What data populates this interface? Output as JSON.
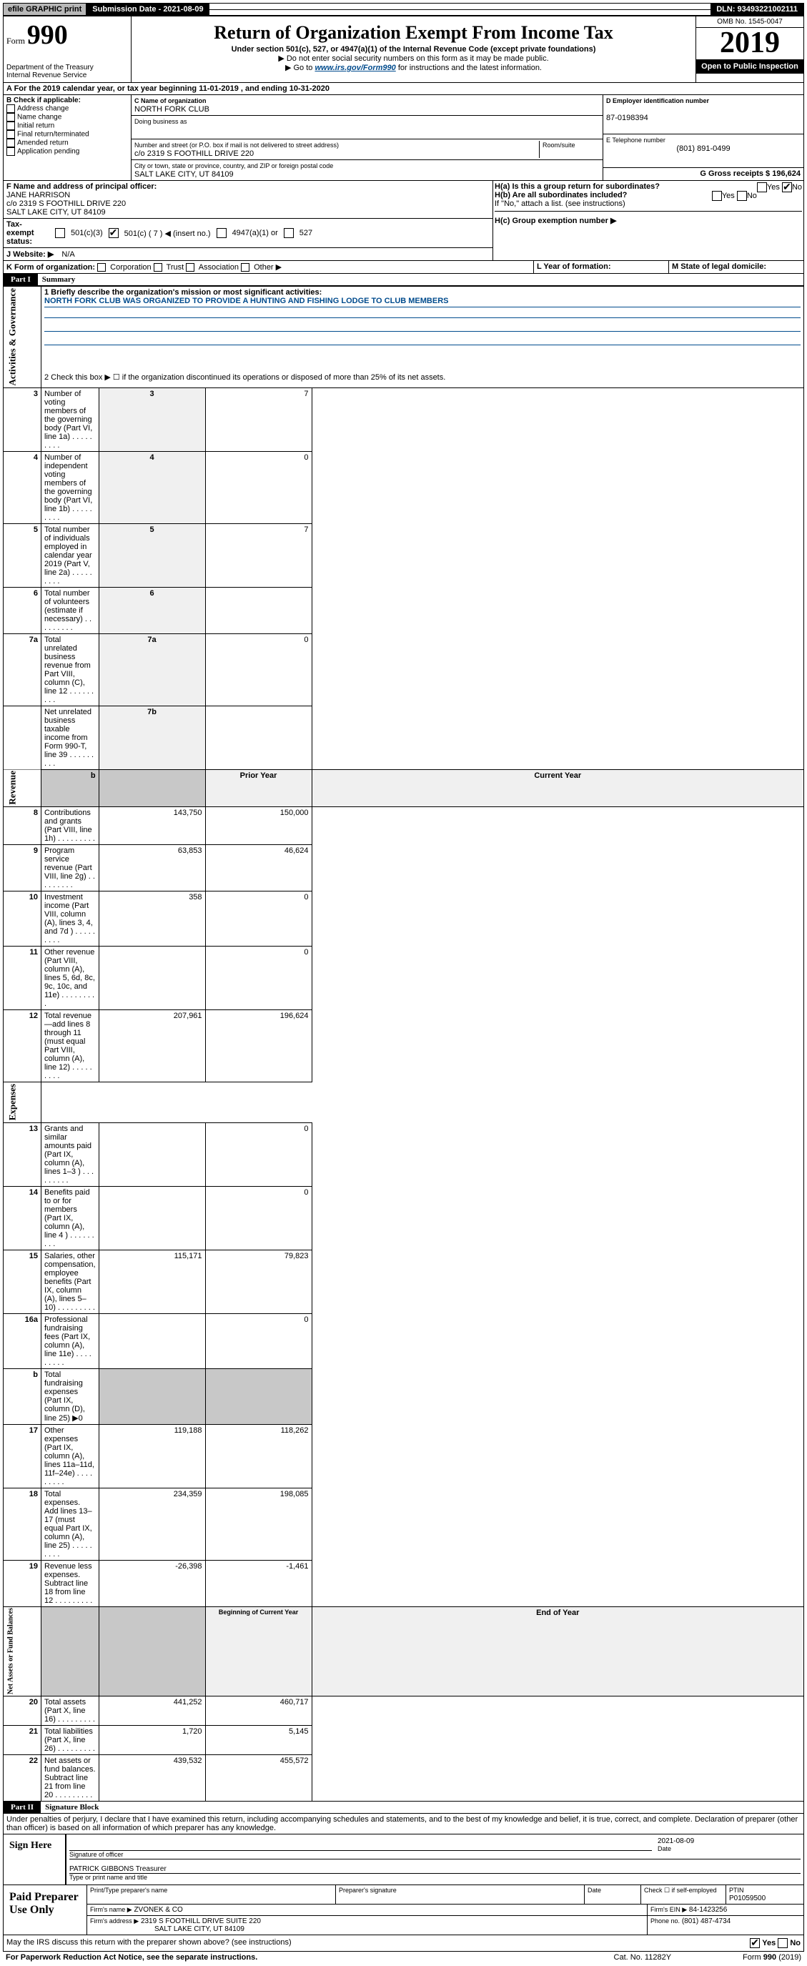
{
  "topbar": {
    "efile": "efile GRAPHIC print",
    "submission": "Submission Date - 2021-08-09",
    "dln": "DLN: 93493221002111"
  },
  "header": {
    "form_prefix": "Form",
    "form_num": "990",
    "dept": "Department of the Treasury\nInternal Revenue Service",
    "title": "Return of Organization Exempt From Income Tax",
    "sub1": "Under section 501(c), 527, or 4947(a)(1) of the Internal Revenue Code (except private foundations)",
    "sub2": "▶ Do not enter social security numbers on this form as it may be made public.",
    "sub3_pre": "▶ Go to ",
    "sub3_link": "www.irs.gov/Form990",
    "sub3_post": " for instructions and the latest information.",
    "omb": "OMB No. 1545-0047",
    "year": "2019",
    "open": "Open to Public Inspection"
  },
  "row_a": {
    "a_label": "A For the 2019 calendar year, or tax year beginning 11-01-2019   , and ending 10-31-2020",
    "b_label": "B Check if applicable:",
    "b_opts": [
      "Address change",
      "Name change",
      "Initial return",
      "Final return/terminated",
      "Amended return",
      "Application pending"
    ],
    "c_label": "C Name of organization",
    "c_val": "NORTH FORK CLUB",
    "dba_label": "Doing business as",
    "addr_label": "Number and street (or P.O. box if mail is not delivered to street address)",
    "addr_val": "c/o 2319 S FOOTHILL DRIVE 220",
    "room_label": "Room/suite",
    "city_label": "City or town, state or province, country, and ZIP or foreign postal code",
    "city_val": "SALT LAKE CITY, UT  84109",
    "d_label": "D Employer identification number",
    "d_val": "87-0198394",
    "e_label": "E Telephone number",
    "e_val": "(801) 891-0499",
    "g_label": "G Gross receipts $ 196,624"
  },
  "row_f": {
    "f_label": "F  Name and address of principal officer:",
    "f_name": "JANE HARRISON",
    "f_addr1": "c/o 2319 S FOOTHILL DRIVE 220",
    "f_addr2": "SALT LAKE CITY, UT  84109",
    "h_a": "H(a)  Is this a group return for subordinates?",
    "h_b": "H(b)  Are all subordinates included?",
    "h_note": "If \"No,\" attach a list. (see instructions)",
    "h_c": "H(c)  Group exemption number ▶",
    "tax_label": "Tax-exempt status:",
    "tax_501c3": "501(c)(3)",
    "tax_501c": "501(c) ( 7 ) ◀ (insert no.)",
    "tax_4947": "4947(a)(1) or",
    "tax_527": "527",
    "website_label": "J   Website: ▶",
    "website_val": "N/A",
    "yes": "Yes",
    "no": "No"
  },
  "row_k": {
    "k_label": "K Form of organization:",
    "opts": [
      "Corporation",
      "Trust",
      "Association",
      "Other ▶"
    ],
    "l_label": "L Year of formation:",
    "m_label": "M State of legal domicile:"
  },
  "part1": {
    "head": "Part I",
    "title": "Summary",
    "line1_label": "1  Briefly describe the organization's mission or most significant activities:",
    "mission": "NORTH FORK CLUB WAS ORGANIZED TO PROVIDE A HUNTING AND FISHING LODGE TO CLUB MEMBERS",
    "line2": "2   Check this box ▶ ☐  if the organization discontinued its operations or disposed of more than 25% of its net assets.",
    "vert_gov": "Activities & Governance",
    "vert_rev": "Revenue",
    "vert_exp": "Expenses",
    "vert_net": "Net Assets or Fund Balances",
    "rows_gov": [
      {
        "n": "3",
        "d": "Number of voting members of the governing body (Part VI, line 1a)",
        "box": "3",
        "v": "7"
      },
      {
        "n": "4",
        "d": "Number of independent voting members of the governing body (Part VI, line 1b)",
        "box": "4",
        "v": "0"
      },
      {
        "n": "5",
        "d": "Total number of individuals employed in calendar year 2019 (Part V, line 2a)",
        "box": "5",
        "v": "7"
      },
      {
        "n": "6",
        "d": "Total number of volunteers (estimate if necessary)",
        "box": "6",
        "v": ""
      },
      {
        "n": "7a",
        "d": "Total unrelated business revenue from Part VIII, column (C), line 12",
        "box": "7a",
        "v": "0"
      },
      {
        "n": "",
        "d": "Net unrelated business taxable income from Form 990-T, line 39",
        "box": "7b",
        "v": ""
      }
    ],
    "prior_label": "Prior Year",
    "current_label": "Current Year",
    "rows_rev": [
      {
        "n": "8",
        "d": "Contributions and grants (Part VIII, line 1h)",
        "p": "143,750",
        "c": "150,000"
      },
      {
        "n": "9",
        "d": "Program service revenue (Part VIII, line 2g)",
        "p": "63,853",
        "c": "46,624"
      },
      {
        "n": "10",
        "d": "Investment income (Part VIII, column (A), lines 3, 4, and 7d )",
        "p": "358",
        "c": "0"
      },
      {
        "n": "11",
        "d": "Other revenue (Part VIII, column (A), lines 5, 6d, 8c, 9c, 10c, and 11e)",
        "p": "",
        "c": "0"
      },
      {
        "n": "12",
        "d": "Total revenue—add lines 8 through 11 (must equal Part VIII, column (A), line 12)",
        "p": "207,961",
        "c": "196,624"
      }
    ],
    "rows_exp": [
      {
        "n": "13",
        "d": "Grants and similar amounts paid (Part IX, column (A), lines 1–3 )",
        "p": "",
        "c": "0"
      },
      {
        "n": "14",
        "d": "Benefits paid to or for members (Part IX, column (A), line 4 )",
        "p": "",
        "c": "0"
      },
      {
        "n": "15",
        "d": "Salaries, other compensation, employee benefits (Part IX, column (A), lines 5–10)",
        "p": "115,171",
        "c": "79,823"
      },
      {
        "n": "16a",
        "d": "Professional fundraising fees (Part IX, column (A), line 11e)",
        "p": "",
        "c": "0"
      },
      {
        "n": "b",
        "d": "Total fundraising expenses (Part IX, column (D), line 25) ▶0",
        "p": "—",
        "c": "—"
      },
      {
        "n": "17",
        "d": "Other expenses (Part IX, column (A), lines 11a–11d, 11f–24e)",
        "p": "119,188",
        "c": "118,262"
      },
      {
        "n": "18",
        "d": "Total expenses. Add lines 13–17 (must equal Part IX, column (A), line 25)",
        "p": "234,359",
        "c": "198,085"
      },
      {
        "n": "19",
        "d": "Revenue less expenses. Subtract line 18 from line 12",
        "p": "-26,398",
        "c": "-1,461"
      }
    ],
    "begin_label": "Beginning of Current Year",
    "end_label": "End of Year",
    "rows_net": [
      {
        "n": "20",
        "d": "Total assets (Part X, line 16)",
        "p": "441,252",
        "c": "460,717"
      },
      {
        "n": "21",
        "d": "Total liabilities (Part X, line 26)",
        "p": "1,720",
        "c": "5,145"
      },
      {
        "n": "22",
        "d": "Net assets or fund balances. Subtract line 21 from line 20",
        "p": "439,532",
        "c": "455,572"
      }
    ]
  },
  "part2": {
    "head": "Part II",
    "title": "Signature Block",
    "declaration": "Under penalties of perjury, I declare that I have examined this return, including accompanying schedules and statements, and to the best of my knowledge and belief, it is true, correct, and complete. Declaration of preparer (other than officer) is based on all information of which preparer has any knowledge.",
    "sign_here": "Sign Here",
    "sig_officer": "Signature of officer",
    "sig_date": "2021-08-09",
    "date_label": "Date",
    "officer_name": "PATRICK GIBBONS Treasurer",
    "type_label": "Type or print name and title",
    "paid": "Paid Preparer Use Only",
    "prep_name_label": "Print/Type preparer's name",
    "prep_sig_label": "Preparer's signature",
    "check_self": "Check ☐ if self-employed",
    "ptin_label": "PTIN",
    "ptin": "P01059500",
    "firm_name_label": "Firm's name   ▶",
    "firm_name": "ZVONEK & CO",
    "firm_ein_label": "Firm's EIN ▶",
    "firm_ein": "84-1423256",
    "firm_addr_label": "Firm's address ▶",
    "firm_addr": "2319 S FOOTHILL DRIVE SUITE 220",
    "firm_city": "SALT LAKE CITY, UT  84109",
    "phone_label": "Phone no.",
    "phone": "(801) 487-4734",
    "discuss": "May the IRS discuss this return with the preparer shown above? (see instructions)",
    "paperwork": "For Paperwork Reduction Act Notice, see the separate instructions.",
    "cat": "Cat. No. 11282Y",
    "form_foot": "Form 990 (2019)"
  }
}
